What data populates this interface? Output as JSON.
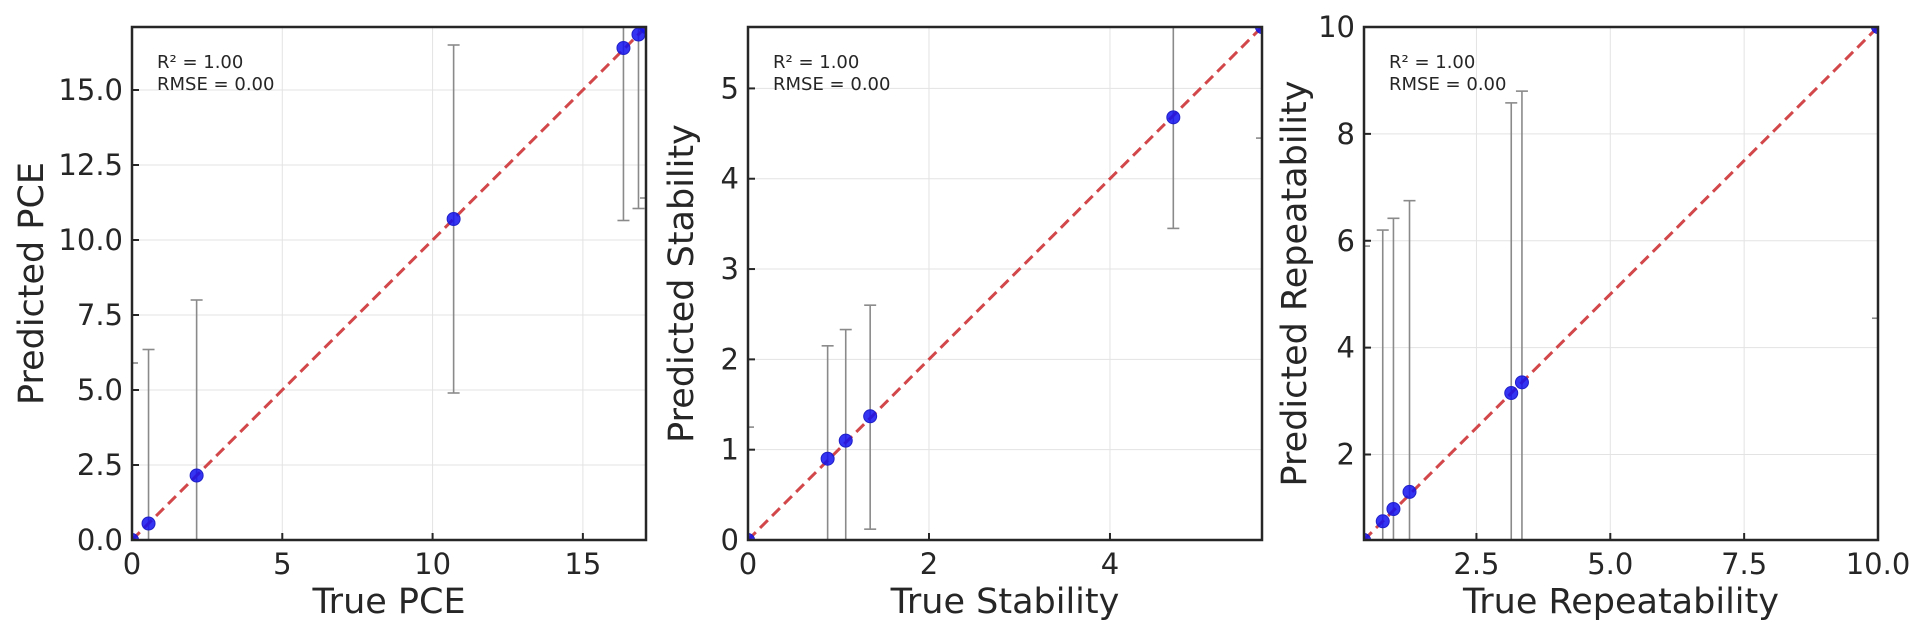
{
  "chart_data": [
    {
      "type": "scatter",
      "xlabel": "True PCE",
      "ylabel": "Predicted PCE",
      "xlim": [
        0,
        17.1
      ],
      "ylim": [
        0,
        17.1
      ],
      "xticks": [
        0,
        5,
        10,
        15
      ],
      "xtick_labels": [
        "0",
        "5",
        "10",
        "15"
      ],
      "yticks": [
        0,
        2.5,
        5,
        7.5,
        10,
        12.5,
        15
      ],
      "ytick_labels": [
        "0.0",
        "2.5",
        "5.0",
        "7.5",
        "10.0",
        "12.5",
        "15.0"
      ],
      "grid": true,
      "annotation": [
        "R² = 1.00",
        "RMSE = 0.00"
      ],
      "points": [
        {
          "x": 0.0,
          "y": 0.0,
          "lo": 0.0,
          "hi": 5.9
        },
        {
          "x": 0.55,
          "y": 0.55,
          "lo": 0.0,
          "hi": 6.35
        },
        {
          "x": 2.15,
          "y": 2.15,
          "lo": 0.0,
          "hi": 8.0
        },
        {
          "x": 10.7,
          "y": 10.7,
          "lo": 4.9,
          "hi": 16.5
        },
        {
          "x": 16.35,
          "y": 16.4,
          "lo": 10.65,
          "hi": 17.1
        },
        {
          "x": 16.85,
          "y": 16.85,
          "lo": 11.05,
          "hi": 17.1
        },
        {
          "x": 17.1,
          "y": 17.1,
          "lo": 11.4,
          "hi": 17.1
        }
      ]
    },
    {
      "type": "scatter",
      "xlabel": "True Stability",
      "ylabel": "Predicted Stability",
      "xlim": [
        0,
        5.68
      ],
      "ylim": [
        0,
        5.68
      ],
      "xticks": [
        0,
        2,
        4
      ],
      "xtick_labels": [
        "0",
        "2",
        "4"
      ],
      "yticks": [
        0,
        1,
        2,
        3,
        4,
        5
      ],
      "ytick_labels": [
        "0",
        "1",
        "2",
        "3",
        "4",
        "5"
      ],
      "grid": true,
      "annotation": [
        "R² = 1.00",
        "RMSE = 0.00"
      ],
      "points": [
        {
          "x": 0.0,
          "y": 0.0,
          "lo": 0.0,
          "hi": 1.25
        },
        {
          "x": 0.88,
          "y": 0.9,
          "lo": 0.0,
          "hi": 2.15
        },
        {
          "x": 1.08,
          "y": 1.1,
          "lo": 0.0,
          "hi": 2.33
        },
        {
          "x": 1.35,
          "y": 1.37,
          "lo": 0.12,
          "hi": 2.6
        },
        {
          "x": 4.7,
          "y": 4.68,
          "lo": 3.45,
          "hi": 5.68
        },
        {
          "x": 5.68,
          "y": 5.68,
          "lo": 4.45,
          "hi": 5.68
        }
      ]
    },
    {
      "type": "scatter",
      "xlabel": "True Repeatability",
      "ylabel": "Predicted Repeatability",
      "xlim": [
        0.4,
        10.0
      ],
      "ylim": [
        0.4,
        10.0
      ],
      "xticks": [
        2.5,
        5.0,
        7.5,
        10.0
      ],
      "xtick_labels": [
        "2.5",
        "5.0",
        "7.5",
        "10.0"
      ],
      "yticks": [
        2,
        4,
        6,
        8,
        10
      ],
      "ytick_labels": [
        "2",
        "4",
        "6",
        "8",
        "10"
      ],
      "grid": true,
      "annotation": [
        "R² = 1.00",
        "RMSE = 0.00"
      ],
      "points": [
        {
          "x": 0.4,
          "y": 0.4,
          "lo": 0.4,
          "hi": 5.9
        },
        {
          "x": 0.75,
          "y": 0.75,
          "lo": 0.4,
          "hi": 6.2
        },
        {
          "x": 0.95,
          "y": 0.98,
          "lo": 0.4,
          "hi": 6.42
        },
        {
          "x": 1.25,
          "y": 1.3,
          "lo": 0.4,
          "hi": 6.75
        },
        {
          "x": 3.15,
          "y": 3.15,
          "lo": 0.4,
          "hi": 8.58
        },
        {
          "x": 3.35,
          "y": 3.35,
          "lo": 0.4,
          "hi": 8.8
        },
        {
          "x": 10.0,
          "y": 10.0,
          "lo": 4.55,
          "hi": 10.0
        }
      ]
    }
  ]
}
